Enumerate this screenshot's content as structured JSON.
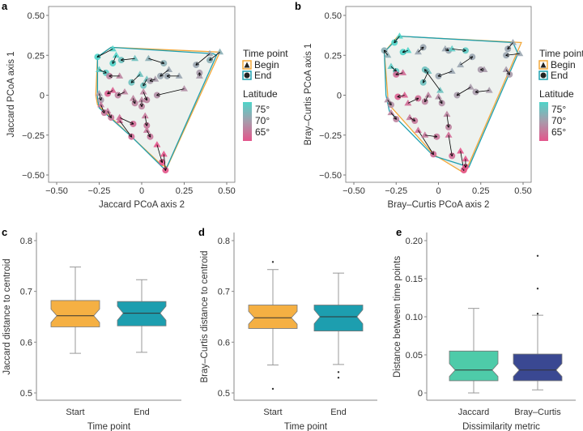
{
  "colors": {
    "begin": "#f3a83b",
    "end": "#1fa0b0",
    "lat_high": "#4fd4c9",
    "lat_mid": "#a89bab",
    "lat_low": "#e4558b",
    "hull_fill": "#eef2ef",
    "start_box": "#f5b043",
    "end_box": "#1d9eaf",
    "jaccard_box": "#4ecba9",
    "bray_box": "#3a4892"
  },
  "chart_data": [
    {
      "panel": "a",
      "type": "scatter",
      "xlabel": "Jaccard PCoA axis 2",
      "ylabel": "Jaccard PCoA axis 1",
      "xlim": [
        -0.55,
        0.55
      ],
      "ylim": [
        -0.55,
        0.55
      ],
      "xticks": [
        -0.5,
        -0.25,
        0,
        0.25,
        0.5
      ],
      "xtick_labels": [
        "−0.50",
        "−0.25",
        "0",
        "0.25",
        "0.50"
      ],
      "yticks": [
        -0.5,
        -0.25,
        0,
        0.25,
        0.5
      ],
      "ytick_labels": [
        "−0.50",
        "−0.25",
        "0",
        "0.25",
        "0.50"
      ],
      "hull_begin": [
        [
          -0.26,
          0.24
        ],
        [
          -0.18,
          0.3
        ],
        [
          0.46,
          0.27
        ],
        [
          0.15,
          -0.45
        ],
        [
          0.12,
          -0.44
        ],
        [
          -0.06,
          -0.26
        ],
        [
          -0.26,
          -0.06
        ],
        [
          -0.27,
          0.0
        ]
      ],
      "hull_end": [
        [
          -0.26,
          0.24
        ],
        [
          -0.18,
          0.3
        ],
        [
          0.42,
          0.26
        ],
        [
          0.44,
          0.25
        ],
        [
          0.14,
          -0.47
        ],
        [
          -0.05,
          -0.27
        ],
        [
          -0.25,
          -0.08
        ],
        [
          -0.26,
          -0.02
        ]
      ],
      "arrows": [
        {
          "begin": [
            -0.17,
            0.29
          ],
          "end": [
            -0.26,
            0.24
          ],
          "lat": 76
        },
        {
          "begin": [
            -0.15,
            0.25
          ],
          "end": [
            -0.17,
            0.2
          ],
          "lat": 76
        },
        {
          "begin": [
            -0.04,
            0.23
          ],
          "end": [
            -0.12,
            0.22
          ],
          "lat": 74
        },
        {
          "begin": [
            0.04,
            0.23
          ],
          "end": [
            0.13,
            0.2
          ],
          "lat": 72
        },
        {
          "begin": [
            0.16,
            0.16
          ],
          "end": [
            0.11,
            0.12
          ],
          "lat": 71
        },
        {
          "begin": [
            0.22,
            0.12
          ],
          "end": [
            0.15,
            0.12
          ],
          "lat": 71
        },
        {
          "begin": [
            0.4,
            0.26
          ],
          "end": [
            0.32,
            0.19
          ],
          "lat": 71
        },
        {
          "begin": [
            0.46,
            0.27
          ],
          "end": [
            0.4,
            0.22
          ],
          "lat": 72
        },
        {
          "begin": [
            0.34,
            0.12
          ],
          "end": [
            0.34,
            0.14
          ],
          "lat": 70
        },
        {
          "begin": [
            0.25,
            0.04
          ],
          "end": [
            0.09,
            0.0
          ],
          "lat": 69
        },
        {
          "begin": [
            -0.25,
            0.16
          ],
          "end": [
            -0.21,
            0.14
          ],
          "lat": 75
        },
        {
          "begin": [
            -0.13,
            0.12
          ],
          "end": [
            -0.19,
            0.12
          ],
          "lat": 68
        },
        {
          "begin": [
            -0.01,
            0.13
          ],
          "end": [
            -0.06,
            0.08
          ],
          "lat": 74
        },
        {
          "begin": [
            0.03,
            0.1
          ],
          "end": [
            0.01,
            0.06
          ],
          "lat": 74
        },
        {
          "begin": [
            0.08,
            0.1
          ],
          "end": [
            0.05,
            0.09
          ],
          "lat": 70
        },
        {
          "begin": [
            -0.25,
            0.01
          ],
          "end": [
            -0.24,
            -0.03
          ],
          "lat": 70
        },
        {
          "begin": [
            -0.17,
            0.03
          ],
          "end": [
            -0.2,
            0.01
          ],
          "lat": 65
        },
        {
          "begin": [
            -0.1,
            0.02
          ],
          "end": [
            -0.14,
            0.0
          ],
          "lat": 68
        },
        {
          "begin": [
            -0.05,
            -0.02
          ],
          "end": [
            -0.04,
            -0.05
          ],
          "lat": 68
        },
        {
          "begin": [
            0.01,
            0.02
          ],
          "end": [
            0.03,
            -0.03
          ],
          "lat": 68
        },
        {
          "begin": [
            0.0,
            -0.03
          ],
          "end": [
            0.0,
            -0.07
          ],
          "lat": 68
        },
        {
          "begin": [
            -0.24,
            -0.06
          ],
          "end": [
            -0.22,
            -0.11
          ],
          "lat": 67
        },
        {
          "begin": [
            -0.2,
            -0.1
          ],
          "end": [
            -0.18,
            -0.14
          ],
          "lat": 67
        },
        {
          "begin": [
            -0.13,
            -0.14
          ],
          "end": [
            -0.05,
            -0.18
          ],
          "lat": 66
        },
        {
          "begin": [
            -0.13,
            -0.16
          ],
          "end": [
            -0.06,
            -0.26
          ],
          "lat": 66
        },
        {
          "begin": [
            0.02,
            -0.13
          ],
          "end": [
            0.03,
            -0.19
          ],
          "lat": 67
        },
        {
          "begin": [
            0.03,
            -0.22
          ],
          "end": [
            0.05,
            -0.26
          ],
          "lat": 67
        },
        {
          "begin": [
            0.09,
            -0.31
          ],
          "end": [
            0.12,
            -0.42
          ],
          "lat": 64
        },
        {
          "begin": [
            0.13,
            -0.37
          ],
          "end": [
            0.14,
            -0.47
          ],
          "lat": 63
        }
      ]
    },
    {
      "panel": "b",
      "type": "scatter",
      "xlabel": "Bray–Curtis PCoA axis 2",
      "ylabel": "Bray–Curtis PCoA axis 1",
      "xlim": [
        -0.55,
        0.55
      ],
      "ylim": [
        -0.55,
        0.55
      ],
      "xticks": [
        -0.5,
        -0.25,
        0,
        0.25,
        0.5
      ],
      "xtick_labels": [
        "−0.50",
        "−0.25",
        "0",
        "0.25",
        "0.50"
      ],
      "yticks": [
        -0.5,
        -0.25,
        0,
        0.25,
        0.5
      ],
      "ytick_labels": [
        "−0.50",
        "−0.25",
        "0",
        "0.25",
        "0.50"
      ],
      "hull_begin": [
        [
          -0.32,
          0.27
        ],
        [
          -0.24,
          0.37
        ],
        [
          0.49,
          0.33
        ],
        [
          0.16,
          -0.48
        ],
        [
          0.14,
          -0.48
        ],
        [
          -0.03,
          -0.37
        ],
        [
          -0.3,
          -0.05
        ],
        [
          -0.3,
          0.0
        ]
      ],
      "hull_end": [
        [
          -0.32,
          0.27
        ],
        [
          -0.23,
          0.37
        ],
        [
          0.44,
          0.33
        ],
        [
          0.47,
          0.26
        ],
        [
          0.18,
          -0.45
        ],
        [
          -0.03,
          -0.38
        ],
        [
          -0.29,
          -0.1
        ],
        [
          -0.31,
          0.0
        ]
      ],
      "arrows": [
        {
          "begin": [
            -0.23,
            0.37
          ],
          "end": [
            -0.26,
            0.33
          ],
          "lat": 76
        },
        {
          "begin": [
            -0.3,
            0.25
          ],
          "end": [
            -0.32,
            0.28
          ],
          "lat": 72
        },
        {
          "begin": [
            -0.18,
            0.28
          ],
          "end": [
            -0.21,
            0.27
          ],
          "lat": 76
        },
        {
          "begin": [
            -0.12,
            0.27
          ],
          "end": [
            -0.09,
            0.3
          ],
          "lat": 71
        },
        {
          "begin": [
            0.04,
            0.29
          ],
          "end": [
            0.06,
            0.28
          ],
          "lat": 71
        },
        {
          "begin": [
            0.08,
            0.29
          ],
          "end": [
            0.16,
            0.28
          ],
          "lat": 75
        },
        {
          "begin": [
            0.13,
            0.19
          ],
          "end": [
            0.2,
            0.24
          ],
          "lat": 71
        },
        {
          "begin": [
            0.27,
            0.16
          ],
          "end": [
            0.25,
            0.16
          ],
          "lat": 70
        },
        {
          "begin": [
            0.44,
            0.33
          ],
          "end": [
            0.41,
            0.29
          ],
          "lat": 71
        },
        {
          "begin": [
            0.48,
            0.26
          ],
          "end": [
            0.4,
            0.25
          ],
          "lat": 71
        },
        {
          "begin": [
            0.4,
            0.16
          ],
          "end": [
            0.42,
            0.13
          ],
          "lat": 70
        },
        {
          "begin": [
            0.3,
            0.03
          ],
          "end": [
            0.22,
            0.02
          ],
          "lat": 70
        },
        {
          "begin": [
            0.19,
            0.05
          ],
          "end": [
            0.11,
            0.0
          ],
          "lat": 70
        },
        {
          "begin": [
            0.08,
            0.15
          ],
          "end": [
            0.0,
            0.12
          ],
          "lat": 71
        },
        {
          "begin": [
            -0.06,
            0.15
          ],
          "end": [
            -0.09,
            0.08
          ],
          "lat": 74
        },
        {
          "begin": [
            0.01,
            0.03
          ],
          "end": [
            -0.08,
            0.16
          ],
          "lat": 74
        },
        {
          "begin": [
            -0.28,
            0.18
          ],
          "end": [
            -0.25,
            0.15
          ],
          "lat": 75
        },
        {
          "begin": [
            -0.21,
            0.14
          ],
          "end": [
            -0.25,
            0.13
          ],
          "lat": 66
        },
        {
          "begin": [
            -0.2,
            0.0
          ],
          "end": [
            -0.24,
            -0.01
          ],
          "lat": 65
        },
        {
          "begin": [
            -0.18,
            -0.05
          ],
          "end": [
            -0.12,
            -0.02
          ],
          "lat": 66
        },
        {
          "begin": [
            -0.06,
            0.0
          ],
          "end": [
            -0.08,
            -0.04
          ],
          "lat": 68
        },
        {
          "begin": [
            0.0,
            -0.01
          ],
          "end": [
            0.02,
            -0.05
          ],
          "lat": 69
        },
        {
          "begin": [
            -0.3,
            -0.03
          ],
          "end": [
            -0.28,
            -0.06
          ],
          "lat": 69
        },
        {
          "begin": [
            -0.28,
            -0.11
          ],
          "end": [
            -0.25,
            -0.15
          ],
          "lat": 68
        },
        {
          "begin": [
            -0.17,
            -0.14
          ],
          "end": [
            -0.14,
            -0.16
          ],
          "lat": 67
        },
        {
          "begin": [
            -0.12,
            -0.22
          ],
          "end": [
            -0.03,
            -0.37
          ],
          "lat": 66
        },
        {
          "begin": [
            -0.08,
            -0.25
          ],
          "end": [
            -0.01,
            -0.26
          ],
          "lat": 67
        },
        {
          "begin": [
            0.05,
            -0.12
          ],
          "end": [
            0.06,
            -0.2
          ],
          "lat": 68
        },
        {
          "begin": [
            0.06,
            -0.25
          ],
          "end": [
            0.08,
            -0.38
          ],
          "lat": 66
        },
        {
          "begin": [
            0.13,
            -0.35
          ],
          "end": [
            0.15,
            -0.47
          ],
          "lat": 63
        },
        {
          "begin": [
            0.16,
            -0.4
          ],
          "end": [
            0.16,
            -0.45
          ],
          "lat": 64
        }
      ]
    },
    {
      "panel": "c",
      "type": "box",
      "xlabel": "Time point",
      "ylabel": "Jaccard distance to centroid",
      "ylim": [
        0.5,
        0.8
      ],
      "yticks": [
        0.5,
        0.6,
        0.7,
        0.8
      ],
      "ytick_labels": [
        "0.5",
        "0.6",
        "0.7",
        "0.8"
      ],
      "categories": [
        "Start",
        "End"
      ],
      "boxes": [
        {
          "min": 0.578,
          "q1": 0.63,
          "median": 0.652,
          "q3": 0.682,
          "max": 0.748,
          "outliers": []
        },
        {
          "min": 0.58,
          "q1": 0.632,
          "median": 0.657,
          "q3": 0.68,
          "max": 0.723,
          "outliers": []
        }
      ]
    },
    {
      "panel": "d",
      "type": "box",
      "xlabel": "Time point",
      "ylabel": "Bray–Curtis distance to centroid",
      "ylim": [
        0.5,
        0.8
      ],
      "yticks": [
        0.5,
        0.6,
        0.7,
        0.8
      ],
      "ytick_labels": [
        "0.5",
        "0.6",
        "0.7",
        "0.8"
      ],
      "categories": [
        "Start",
        "End"
      ],
      "boxes": [
        {
          "min": 0.555,
          "q1": 0.627,
          "median": 0.648,
          "q3": 0.673,
          "max": 0.743,
          "outliers": [
            0.758,
            0.508
          ]
        },
        {
          "min": 0.556,
          "q1": 0.622,
          "median": 0.65,
          "q3": 0.673,
          "max": 0.736,
          "outliers": [
            0.541,
            0.53
          ]
        }
      ]
    },
    {
      "panel": "e",
      "type": "box",
      "xlabel": "Dissimilarity metric",
      "ylabel": "Distance between time points",
      "ylim": [
        0,
        0.2
      ],
      "yticks": [
        0,
        0.05,
        0.1,
        0.15,
        0.2
      ],
      "ytick_labels": [
        "0",
        "0.05",
        "0.10",
        "0.15",
        "0.20"
      ],
      "categories": [
        "Jaccard",
        "Bray–Curtis"
      ],
      "boxes": [
        {
          "min": 0.0,
          "q1": 0.016,
          "median": 0.03,
          "q3": 0.055,
          "max": 0.111,
          "outliers": []
        },
        {
          "min": 0.004,
          "q1": 0.016,
          "median": 0.03,
          "q3": 0.051,
          "max": 0.102,
          "outliers": [
            0.18,
            0.137,
            0.104
          ]
        }
      ]
    }
  ],
  "legend": {
    "time_title": "Time point",
    "begin": "Begin",
    "end": "End",
    "lat_title": "Latitude",
    "lat_labels": [
      "75°",
      "70°",
      "65°"
    ]
  },
  "panel_labels": [
    "a",
    "b",
    "c",
    "d",
    "e"
  ]
}
